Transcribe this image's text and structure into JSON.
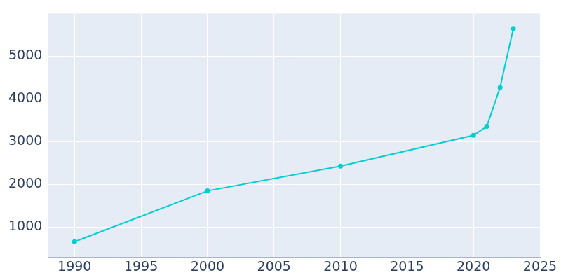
{
  "chart_data": {
    "type": "line",
    "x": [
      1990,
      2000,
      2010,
      2020,
      2021,
      2022,
      2023
    ],
    "values": [
      660,
      1850,
      2430,
      3150,
      3360,
      4270,
      5650
    ],
    "color": "#00ced1",
    "marker": "circle",
    "xlim": [
      1988,
      2025
    ],
    "xticks": [
      1990,
      1995,
      2000,
      2005,
      2010,
      2015,
      2020,
      2025
    ],
    "ylim": [
      300,
      6000
    ],
    "yticks": [
      1000,
      2000,
      3000,
      4000,
      5000
    ],
    "grid": true
  }
}
